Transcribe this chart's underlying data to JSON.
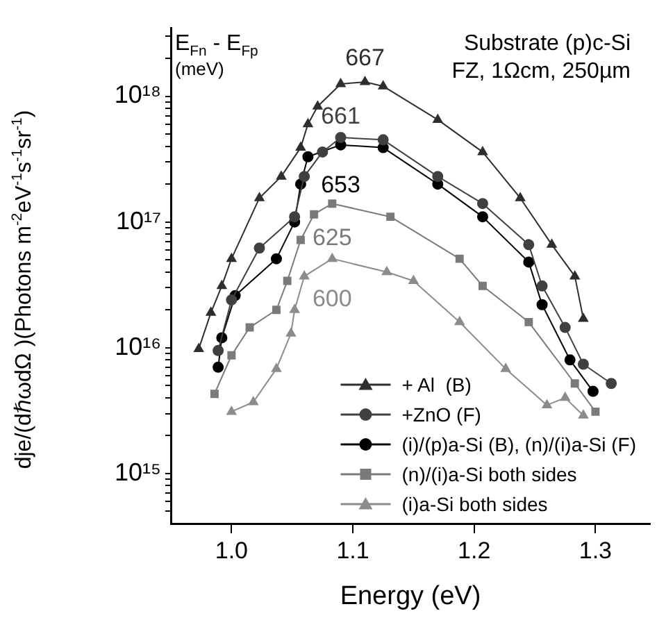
{
  "chart_data": {
    "type": "line",
    "xlabel": "Energy (eV)",
    "ylabel": "dje/(dℏωdΩ )(Photons m$^{-2}$eV$^{-1}$s$^{-1}$sr$^{-1}$)",
    "annotations": [
      "E$_{Fn}$ - E$_{Fp}$",
      "(meV)",
      "Substrate (p)c-Si",
      "FZ, 1Ωcm, 250µm",
      "667",
      "661",
      "653",
      "625",
      "600"
    ],
    "series": [
      {
        "name": "+ Al  (B)",
        "color": "#2e2e2e",
        "marker": "triangle",
        "x": [
          0.973,
          0.983,
          0.992,
          1.0,
          1.023,
          1.041,
          1.057,
          1.063,
          1.071,
          1.09,
          1.11,
          1.125,
          1.17,
          1.207,
          1.238,
          1.264,
          1.283,
          1.29
        ],
        "values": [
          9800000000000000.0,
          1.9e+16,
          3.1e+16,
          5.1e+16,
          1.55e+17,
          2.3e+17,
          3.9e+17,
          6e+17,
          8.3e+17,
          1.25e+18,
          1.3e+18,
          1.2e+18,
          6.5e+17,
          3.6e+17,
          1.55e+17,
          6.6e+16,
          3.7e+16,
          1.7e+16
        ]
      },
      {
        "name": "+ZnO (F)",
        "color": "#404040",
        "marker": "circle",
        "x": [
          0.989,
          1.0,
          1.023,
          1.052,
          1.06,
          1.075,
          1.09,
          1.125,
          1.17,
          1.207,
          1.245,
          1.256,
          1.275,
          1.29,
          1.313
        ],
        "values": [
          9500000000000000.0,
          2.4e+16,
          6.2e+16,
          1.1e+17,
          2.3e+17,
          3.6e+17,
          4.7e+17,
          4.5e+17,
          2.3e+17,
          1.4e+17,
          6.6e+16,
          3.1e+16,
          1.45e+16,
          7400000000000000.0,
          5200000000000000.0
        ]
      },
      {
        "name": "(i)/(p)a-Si (B), (n)/(i)a-Si (F)",
        "color": "#000000",
        "marker": "circle",
        "x": [
          0.989,
          0.992,
          1.003,
          1.037,
          1.052,
          1.057,
          1.063,
          1.09,
          1.125,
          1.17,
          1.207,
          1.245,
          1.256,
          1.279,
          1.298
        ],
        "values": [
          7000000000000000.0,
          1.2e+16,
          2.6e+16,
          5.1e+16,
          1e+17,
          2e+17,
          3.3e+17,
          4.1e+17,
          3.9e+17,
          2e+17,
          1.1e+17,
          4.8e+16,
          2.2e+16,
          8000000000000000.0,
          4500000000000000.0
        ]
      },
      {
        "name": "(n)/(i)a-Si both sides",
        "color": "#7a7a7a",
        "marker": "square",
        "x": [
          0.986,
          1.0,
          1.015,
          1.037,
          1.046,
          1.057,
          1.068,
          1.083,
          1.131,
          1.188,
          1.207,
          1.245,
          1.283,
          1.3
        ],
        "values": [
          4300000000000000.0,
          8700000000000000.0,
          1.45e+16,
          2e+16,
          3.4e+16,
          7.2e+16,
          1.15e+17,
          1.4e+17,
          1.1e+17,
          5.1e+16,
          3.1e+16,
          1.6e+16,
          5200000000000000.0,
          3100000000000000.0
        ]
      },
      {
        "name": "(i)a-Si both sides",
        "color": "#8c8c8c",
        "marker": "triangle",
        "x": [
          1.0,
          1.018,
          1.037,
          1.049,
          1.052,
          1.06,
          1.083,
          1.128,
          1.15,
          1.188,
          1.226,
          1.26,
          1.275,
          1.29
        ],
        "values": [
          3100000000000000.0,
          3700000000000000.0,
          6800000000000000.0,
          1.3e+16,
          2e+16,
          3.7e+16,
          5.1e+16,
          4e+16,
          3.4e+16,
          1.6e+16,
          6800000000000000.0,
          3500000000000000.0,
          4000000000000000.0,
          2900000000000000.0
        ]
      }
    ],
    "xlim": [
      0.95,
      1.345
    ],
    "xticks": [
      {
        "value": 1,
        "label": "1.0"
      },
      1.1,
      1.2,
      1.3
    ],
    "ylim": [
      400000000000000.0,
      3.5e+18
    ],
    "yticks": [
      {
        "value": 500000000000000.0,
        "label": null
      },
      {
        "value": 600000000000000.0,
        "label": null
      },
      {
        "value": 700000000000000.0,
        "label": null
      },
      {
        "value": 800000000000000.0,
        "label": null
      },
      {
        "value": 900000000000000.0,
        "label": null
      },
      {
        "value": 1000000000000000.0,
        "label": "10¹⁵"
      },
      {
        "value": 2000000000000000.0,
        "label": null
      },
      {
        "value": 3000000000000000.0,
        "label": null
      },
      {
        "value": 4000000000000000.0,
        "label": null
      },
      {
        "value": 5000000000000000.0,
        "label": null
      },
      {
        "value": 6000000000000000.0,
        "label": null
      },
      {
        "value": 7000000000000000.0,
        "label": null
      },
      {
        "value": 8000000000000000.0,
        "label": null
      },
      {
        "value": 9000000000000000.0,
        "label": null
      },
      {
        "value": 1e+16,
        "label": "10¹⁶"
      },
      {
        "value": 2e+16,
        "label": null
      },
      {
        "value": 3e+16,
        "label": null
      },
      {
        "value": 4e+16,
        "label": null
      },
      {
        "value": 5e+16,
        "label": null
      },
      {
        "value": 6e+16,
        "label": null
      },
      {
        "value": 7e+16,
        "label": null
      },
      {
        "value": 8e+16,
        "label": null
      },
      {
        "value": 9e+16,
        "label": null
      },
      {
        "value": 1e+17,
        "label": "10¹⁷"
      },
      {
        "value": 2e+17,
        "label": null
      },
      {
        "value": 3e+17,
        "label": null
      },
      {
        "value": 4e+17,
        "label": null
      },
      {
        "value": 5e+17,
        "label": null
      },
      {
        "value": 6e+17,
        "label": null
      },
      {
        "value": 7e+17,
        "label": null
      },
      {
        "value": 8e+17,
        "label": null
      },
      {
        "value": 9e+17,
        "label": null
      },
      {
        "value": 1e+18,
        "label": "10¹⁸"
      },
      {
        "value": 2e+18,
        "label": null
      },
      {
        "value": 3e+18,
        "label": null
      }
    ],
    "log": "y",
    "grid": false,
    "legend": "bottom right",
    "line_style": "solid"
  }
}
